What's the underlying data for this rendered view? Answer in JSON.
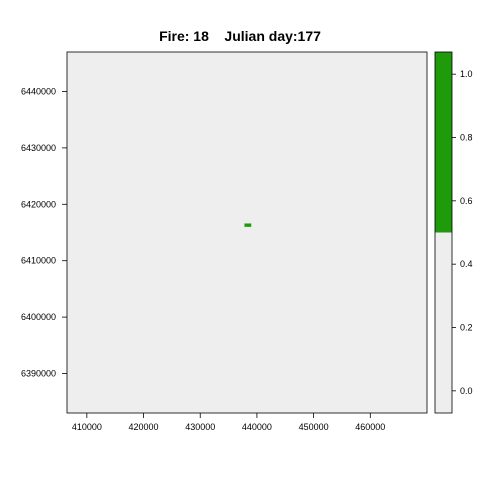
{
  "chart_data": {
    "type": "heatmap",
    "title": "Fire: 18    Julian day:177",
    "xlabel": "",
    "ylabel": "",
    "xlim": [
      406500,
      470000
    ],
    "ylim": [
      6383000,
      6447000
    ],
    "x_ticks": [
      410000,
      420000,
      430000,
      440000,
      450000,
      460000
    ],
    "y_ticks": [
      6390000,
      6400000,
      6410000,
      6420000,
      6430000,
      6440000
    ],
    "x_tick_labels": [
      "410000",
      "420000",
      "430000",
      "440000",
      "450000",
      "460000"
    ],
    "y_tick_labels": [
      "6390000",
      "6400000",
      "6410000",
      "6420000",
      "6430000",
      "6440000"
    ],
    "background_value": 0,
    "cells": [
      {
        "x0": 437800,
        "x1": 439000,
        "y0": 6416000,
        "y1": 6416600,
        "value": 1
      }
    ],
    "colorbar": {
      "range": [
        -0.07,
        1.07
      ],
      "ticks": [
        0.0,
        0.2,
        0.4,
        0.6,
        0.8,
        1.0
      ],
      "tick_labels": [
        "0.0",
        "0.2",
        "0.4",
        "0.6",
        "0.8",
        "1.0"
      ],
      "segments": [
        {
          "from": -0.07,
          "to": 0.5,
          "color": "#eeeeee"
        },
        {
          "from": 0.5,
          "to": 1.07,
          "color": "#1e9a0a"
        }
      ]
    },
    "colors": {
      "low": "#eeeeee",
      "high": "#1e9a0a"
    },
    "grid": false,
    "legend": "right"
  }
}
